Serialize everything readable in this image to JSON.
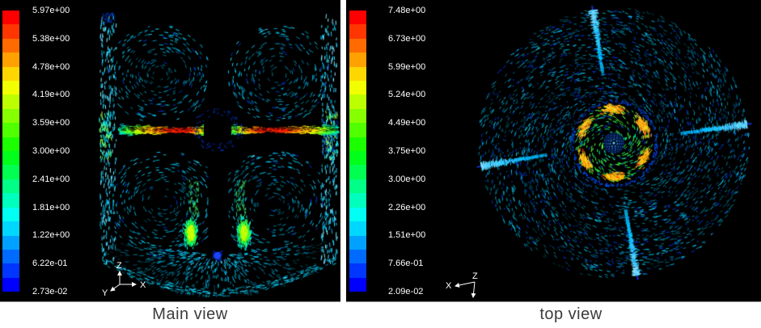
{
  "captions": {
    "main": "Main view",
    "top": "top view"
  },
  "colormap": [
    "#ff0000",
    "#ff3600",
    "#ff6b00",
    "#ffa100",
    "#ffd700",
    "#f2ff00",
    "#bcff00",
    "#86ff00",
    "#50ff00",
    "#1bff00",
    "#00ff1b",
    "#00ff50",
    "#00ff86",
    "#00ffbc",
    "#00fff2",
    "#00d7ff",
    "#00a1ff",
    "#006bff",
    "#0036ff",
    "#0000ff"
  ],
  "panels": {
    "main": {
      "name": "Main view",
      "colorbar_labels": [
        "5.97e+00",
        "5.38e+00",
        "4.78e+00",
        "4.19e+00",
        "3.59e+00",
        "3.00e+00",
        "2.41e+00",
        "1.81e+00",
        "1.22e+00",
        "6.22e-01",
        "2.73e-02"
      ],
      "axis_triad": {
        "z": "Z",
        "y": "Y",
        "x": "X"
      }
    },
    "top": {
      "name": "top view",
      "colorbar_labels": [
        "7.48e+00",
        "6.73e+00",
        "5.99e+00",
        "5.24e+00",
        "4.49e+00",
        "3.75e+00",
        "3.00e+00",
        "2.26e+00",
        "1.51e+00",
        "7.66e-01",
        "2.09e-02"
      ],
      "axis_triad": {
        "x": "X",
        "z": "Z"
      }
    }
  },
  "colors": {
    "panel_bg": "#000000",
    "page_bg": "#ffffff",
    "tick_label": "#ffffff",
    "caption": "#3b3b3b",
    "vector_primary": "#00c8f0",
    "vector_deep_blue": "#0034c8",
    "baffle_line": "#1432c8"
  }
}
